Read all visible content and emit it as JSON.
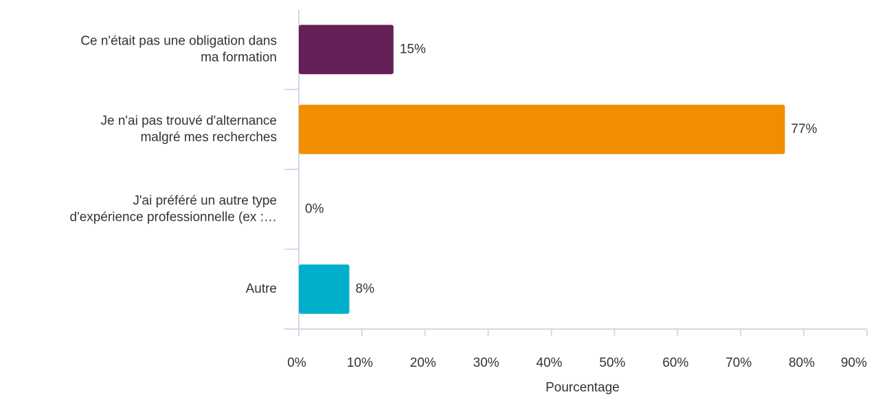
{
  "chart_data": {
    "type": "hbar",
    "categories": [
      "Ce n'était pas une obligation dans ma formation",
      "Je n'ai pas trouvé d'alternance malgré mes recherches",
      "J'ai préféré un autre type d'expérience professionnelle (ex :…",
      "Autre"
    ],
    "values": [
      15,
      77,
      0,
      8
    ],
    "value_labels": [
      "15%",
      "77%",
      "0%",
      "8%"
    ],
    "colors": [
      "#662058",
      "#f18e00",
      "#662058",
      "#00b0ca"
    ],
    "xlabel": "Pourcentage",
    "xlim": [
      0,
      90
    ],
    "xticks": [
      {
        "value": 0,
        "label": "0%"
      },
      {
        "value": 10,
        "label": "10%"
      },
      {
        "value": 20,
        "label": "20%"
      },
      {
        "value": 30,
        "label": "30%"
      },
      {
        "value": 40,
        "label": "40%"
      },
      {
        "value": 50,
        "label": "50%"
      },
      {
        "value": 60,
        "label": "60%"
      },
      {
        "value": 70,
        "label": "70%"
      },
      {
        "value": 80,
        "label": "80%"
      },
      {
        "value": 90,
        "label": "90%"
      }
    ]
  }
}
